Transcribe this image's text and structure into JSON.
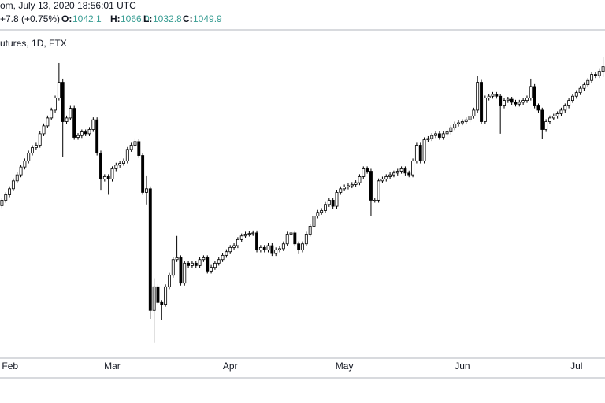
{
  "header": {
    "symbol_line": "om, July 13, 2020 18:56:01 UTC",
    "change": "+7.8 (+0.75%)",
    "open_label": "O:",
    "open": "1042.1",
    "high_label": "H:",
    "high": "1066.0",
    "low_label": "L:",
    "low": "1032.8",
    "close_label": "C:",
    "close": "1049.9"
  },
  "chart_data": {
    "type": "candlestick",
    "subtitle": "utures, 1D, FTX",
    "up_color": "#ffffff",
    "down_color": "#000000",
    "outline_color": "#000000",
    "ylim": [
      568,
      1108
    ],
    "categories": [
      "Feb",
      null,
      null,
      null,
      null,
      null,
      null,
      null,
      null,
      null,
      null,
      null,
      null,
      null,
      null,
      null,
      null,
      null,
      null,
      null,
      null,
      null,
      null,
      null,
      null,
      null,
      null,
      null,
      null,
      "Mar",
      null,
      null,
      null,
      null,
      null,
      null,
      null,
      null,
      null,
      null,
      null,
      null,
      null,
      null,
      null,
      null,
      null,
      null,
      null,
      null,
      null,
      null,
      null,
      null,
      null,
      null,
      null,
      null,
      null,
      null,
      "Apr",
      null,
      null,
      null,
      null,
      null,
      null,
      null,
      null,
      null,
      null,
      null,
      null,
      null,
      null,
      null,
      null,
      null,
      null,
      null,
      null,
      null,
      null,
      null,
      null,
      null,
      null,
      null,
      null,
      null,
      "May",
      null,
      null,
      null,
      null,
      null,
      null,
      null,
      null,
      null,
      null,
      null,
      null,
      null,
      null,
      null,
      null,
      null,
      null,
      null,
      null,
      null,
      null,
      null,
      null,
      null,
      null,
      null,
      null,
      null,
      null,
      "Jun",
      null,
      null,
      null,
      null,
      null,
      null,
      null,
      null,
      null,
      null,
      null,
      null,
      null,
      null,
      null,
      null,
      null,
      null,
      null,
      null,
      null,
      null,
      null,
      null,
      null,
      null,
      null,
      null,
      null,
      "Jul",
      null,
      null,
      null,
      null,
      null,
      null,
      null
    ],
    "open": [
      820,
      829,
      838,
      848,
      861,
      871,
      884,
      894,
      907,
      916,
      920,
      939,
      952,
      965,
      978,
      998,
      1024,
      959,
      965,
      981,
      933,
      936,
      942,
      939,
      946,
      962,
      907,
      864,
      868,
      864,
      881,
      887,
      890,
      894,
      913,
      920,
      926,
      903,
      842,
      848,
      647,
      686,
      660,
      657,
      686,
      705,
      731,
      734,
      692,
      725,
      721,
      725,
      721,
      731,
      734,
      712,
      718,
      725,
      731,
      738,
      744,
      751,
      754,
      764,
      770,
      773,
      774,
      775,
      747,
      751,
      747,
      754,
      741,
      747,
      749,
      757,
      773,
      775,
      757,
      747,
      757,
      773,
      786,
      803,
      809,
      812,
      822,
      829,
      819,
      842,
      848,
      851,
      853,
      855,
      858,
      868,
      881,
      877,
      829,
      829,
      861,
      864,
      868,
      871,
      874,
      877,
      881,
      874,
      871,
      894,
      920,
      894,
      929,
      931,
      936,
      939,
      933,
      939,
      942,
      949,
      955,
      957,
      959,
      962,
      968,
      978,
      1024,
      959,
      998,
      1001,
      1004,
      1001,
      985,
      994,
      996,
      991,
      988,
      991,
      994,
      998,
      1017,
      985,
      978,
      946,
      959,
      965,
      968,
      972,
      978,
      985,
      994,
      1001,
      1007,
      1014,
      1020,
      1027,
      1037,
      1035,
      1042.1
    ],
    "high": [
      833,
      842,
      852,
      865,
      875,
      888,
      898,
      911,
      920,
      924,
      943,
      956,
      969,
      982,
      1002,
      1056,
      1030,
      969,
      985,
      985,
      940,
      946,
      946,
      950,
      966,
      966,
      911,
      872,
      872,
      885,
      891,
      894,
      898,
      917,
      924,
      932,
      930,
      907,
      870,
      852,
      700,
      690,
      664,
      690,
      709,
      735,
      770,
      738,
      729,
      729,
      729,
      729,
      735,
      738,
      738,
      722,
      729,
      735,
      742,
      748,
      755,
      758,
      768,
      774,
      777,
      778,
      779,
      779,
      755,
      755,
      758,
      758,
      751,
      753,
      761,
      777,
      779,
      779,
      761,
      761,
      777,
      790,
      807,
      813,
      816,
      826,
      833,
      833,
      846,
      852,
      855,
      857,
      859,
      862,
      872,
      885,
      885,
      881,
      833,
      865,
      868,
      872,
      875,
      878,
      881,
      885,
      885,
      878,
      898,
      924,
      924,
      933,
      935,
      940,
      943,
      943,
      943,
      946,
      953,
      959,
      961,
      963,
      966,
      972,
      982,
      1034,
      1028,
      1002,
      1005,
      1008,
      1008,
      1005,
      998,
      1000,
      1000,
      995,
      995,
      998,
      1002,
      1030,
      1021,
      989,
      982,
      963,
      969,
      972,
      976,
      982,
      989,
      998,
      1005,
      1011,
      1018,
      1024,
      1031,
      1041,
      1041,
      1046,
      1066
    ],
    "low": [
      816,
      825,
      834,
      844,
      857,
      867,
      880,
      890,
      903,
      912,
      916,
      935,
      948,
      961,
      974,
      994,
      900,
      955,
      961,
      929,
      929,
      932,
      935,
      935,
      942,
      903,
      845,
      860,
      838,
      860,
      877,
      883,
      886,
      890,
      909,
      916,
      899,
      838,
      822,
      633,
      593,
      656,
      631,
      653,
      682,
      701,
      727,
      688,
      688,
      717,
      717,
      717,
      717,
      727,
      708,
      708,
      714,
      721,
      727,
      734,
      740,
      747,
      750,
      760,
      766,
      769,
      770,
      743,
      743,
      743,
      743,
      737,
      737,
      743,
      745,
      753,
      769,
      753,
      740,
      743,
      753,
      769,
      782,
      799,
      805,
      808,
      818,
      815,
      815,
      838,
      844,
      847,
      849,
      851,
      854,
      864,
      873,
      803,
      825,
      825,
      857,
      860,
      864,
      867,
      870,
      873,
      870,
      867,
      867,
      890,
      890,
      890,
      925,
      927,
      932,
      929,
      929,
      935,
      938,
      945,
      951,
      953,
      955,
      958,
      964,
      974,
      955,
      955,
      994,
      997,
      997,
      939,
      981,
      990,
      987,
      984,
      984,
      987,
      990,
      994,
      981,
      974,
      930,
      942,
      955,
      961,
      964,
      968,
      974,
      981,
      990,
      997,
      1003,
      1010,
      1016,
      1023,
      1031,
      1031,
      1032.8
    ],
    "close": [
      829,
      838,
      848,
      861,
      871,
      884,
      894,
      907,
      916,
      920,
      939,
      952,
      965,
      978,
      998,
      1024,
      959,
      965,
      981,
      933,
      936,
      942,
      939,
      946,
      962,
      907,
      864,
      868,
      864,
      881,
      887,
      890,
      894,
      913,
      920,
      926,
      903,
      842,
      848,
      647,
      686,
      660,
      657,
      686,
      705,
      731,
      734,
      692,
      725,
      721,
      725,
      721,
      731,
      734,
      712,
      718,
      725,
      731,
      738,
      744,
      751,
      754,
      764,
      770,
      773,
      774,
      775,
      747,
      751,
      747,
      754,
      741,
      747,
      749,
      757,
      773,
      775,
      757,
      747,
      757,
      773,
      786,
      803,
      809,
      812,
      822,
      829,
      819,
      842,
      848,
      851,
      853,
      855,
      858,
      868,
      881,
      877,
      829,
      829,
      861,
      864,
      868,
      871,
      874,
      877,
      881,
      874,
      871,
      894,
      920,
      894,
      929,
      931,
      936,
      939,
      933,
      939,
      942,
      949,
      955,
      957,
      959,
      962,
      968,
      978,
      1024,
      959,
      998,
      1001,
      1004,
      1001,
      985,
      994,
      996,
      991,
      988,
      991,
      994,
      998,
      1017,
      985,
      978,
      946,
      959,
      965,
      968,
      972,
      978,
      985,
      994,
      1001,
      1007,
      1014,
      1020,
      1027,
      1037,
      1035,
      1042.1,
      1049.9
    ]
  }
}
